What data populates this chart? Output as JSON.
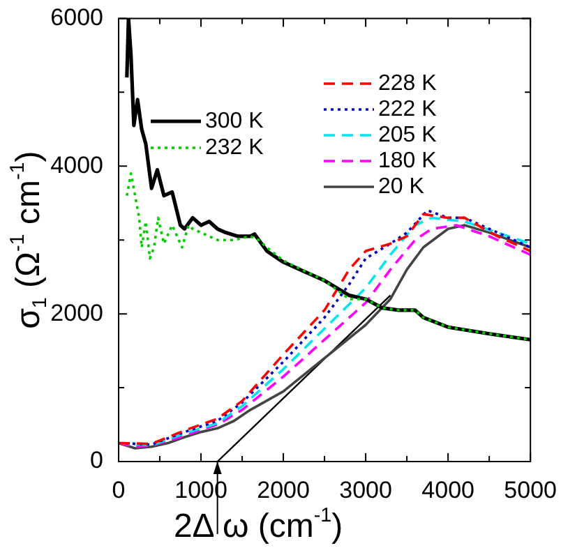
{
  "chart_data": {
    "type": "line",
    "xlabel": "ω (cm$^{-1}$)",
    "ylabel": "σ$_{1}$ (Ω$^{-1}$ cm$^{-1}$)",
    "xlim": [
      0,
      5000
    ],
    "ylim": [
      0,
      6000
    ],
    "xticks": [
      0,
      {
        "value": 500,
        "label": null
      },
      1000,
      {
        "value": 1500,
        "label": null
      },
      2000,
      {
        "value": 2500,
        "label": null
      },
      3000,
      {
        "value": 3500,
        "label": null
      },
      4000,
      {
        "value": 4500,
        "label": null
      },
      5000
    ],
    "yticks": [
      0,
      {
        "value": 1000,
        "label": null
      },
      2000,
      {
        "value": 3000,
        "label": null
      },
      4000,
      {
        "value": 5000,
        "label": null
      },
      6000
    ],
    "grid": false,
    "legend": "top",
    "marker": "none",
    "annotations": [
      {
        "text": "2Δ",
        "x": 1200,
        "y": 0
      }
    ],
    "series": [
      {
        "name": "300 K",
        "color": "#000000",
        "line_style": "solid",
        "x": [
          100,
          120,
          150,
          185,
          230,
          280,
          330,
          400,
          470,
          550,
          650,
          750,
          800,
          900,
          1000,
          1100,
          1200,
          1300,
          1450,
          1600,
          1650,
          1800,
          2000,
          2200,
          2500,
          2800,
          3000,
          3200,
          3400,
          3600,
          3700,
          4000,
          4500,
          5000
        ],
        "values": [
          5200,
          6000,
          5500,
          4550,
          4900,
          4500,
          4300,
          3700,
          3950,
          3600,
          3650,
          3200,
          3150,
          3300,
          3200,
          3250,
          3150,
          3100,
          3050,
          3050,
          3080,
          2850,
          2700,
          2600,
          2450,
          2250,
          2200,
          2080,
          2050,
          2050,
          1950,
          1820,
          1730,
          1650
        ]
      },
      {
        "name": "232 K",
        "color": "#00cc00",
        "line_style": "dotted",
        "x": [
          100,
          150,
          200,
          250,
          280,
          330,
          380,
          430,
          480,
          550,
          650,
          770,
          850,
          900,
          1000,
          1200,
          1400,
          1600,
          1700,
          1800,
          2000,
          2500,
          2800,
          3000,
          3200,
          3400,
          3600,
          3700,
          4000,
          4500,
          5000
        ],
        "values": [
          3600,
          3900,
          3600,
          3300,
          2900,
          3250,
          2750,
          2900,
          3300,
          2950,
          3200,
          2900,
          3200,
          3150,
          3100,
          3000,
          3000,
          3050,
          3000,
          2900,
          2720,
          2450,
          2200,
          2200,
          2080,
          2050,
          2050,
          1950,
          1820,
          1730,
          1650
        ]
      },
      {
        "name": "228 K",
        "color": "#ff0000",
        "line_style": "dashed",
        "x": [
          0,
          400,
          800,
          1200,
          1500,
          2000,
          2500,
          2800,
          3000,
          3300,
          3500,
          3700,
          4000,
          4200,
          4600,
          5000
        ],
        "values": [
          250,
          240,
          420,
          580,
          820,
          1450,
          2050,
          2600,
          2850,
          2950,
          3050,
          3350,
          3300,
          3300,
          3050,
          2850
        ]
      },
      {
        "name": "222 K",
        "color": "#0000cc",
        "line_style": "dotted",
        "x": [
          0,
          400,
          800,
          1200,
          1500,
          2000,
          2500,
          2800,
          3000,
          3300,
          3500,
          3750,
          4000,
          4200,
          4600,
          5000
        ],
        "values": [
          250,
          230,
          400,
          550,
          800,
          1350,
          1950,
          2400,
          2750,
          2950,
          3100,
          3400,
          3300,
          3300,
          3100,
          2900
        ]
      },
      {
        "name": "205 K",
        "color": "#00e5ee",
        "line_style": "dashed",
        "x": [
          0,
          400,
          800,
          1200,
          1500,
          2000,
          2500,
          3000,
          3300,
          3600,
          3800,
          4200,
          4600,
          5000
        ],
        "values": [
          250,
          220,
          380,
          520,
          750,
          1250,
          1800,
          2350,
          2800,
          3200,
          3300,
          3250,
          3100,
          2950
        ]
      },
      {
        "name": "180 K",
        "color": "#ff00ff",
        "line_style": "dashed",
        "x": [
          0,
          200,
          400,
          600,
          800,
          1000,
          1200,
          1500,
          2000,
          2500,
          3000,
          3300,
          3600,
          3800,
          4100,
          4500,
          5000
        ],
        "values": [
          250,
          200,
          220,
          280,
          350,
          430,
          500,
          700,
          1150,
          1650,
          2150,
          2600,
          3000,
          3150,
          3200,
          3050,
          2800
        ]
      },
      {
        "name": "20 K",
        "color": "#444444",
        "line_style": "solid",
        "x": [
          0,
          200,
          400,
          600,
          800,
          1000,
          1200,
          1400,
          1600,
          2000,
          2500,
          3000,
          3300,
          3500,
          3700,
          4000,
          4200,
          4500,
          5000
        ],
        "values": [
          250,
          180,
          200,
          250,
          330,
          400,
          450,
          550,
          700,
          950,
          1400,
          1850,
          2200,
          2600,
          2900,
          3150,
          3200,
          3100,
          2900
        ]
      },
      {
        "type": "line",
        "color": "#000000",
        "line_style": "solid",
        "x": [
          1200,
          3300
        ],
        "values": [
          0,
          2250
        ]
      }
    ]
  }
}
